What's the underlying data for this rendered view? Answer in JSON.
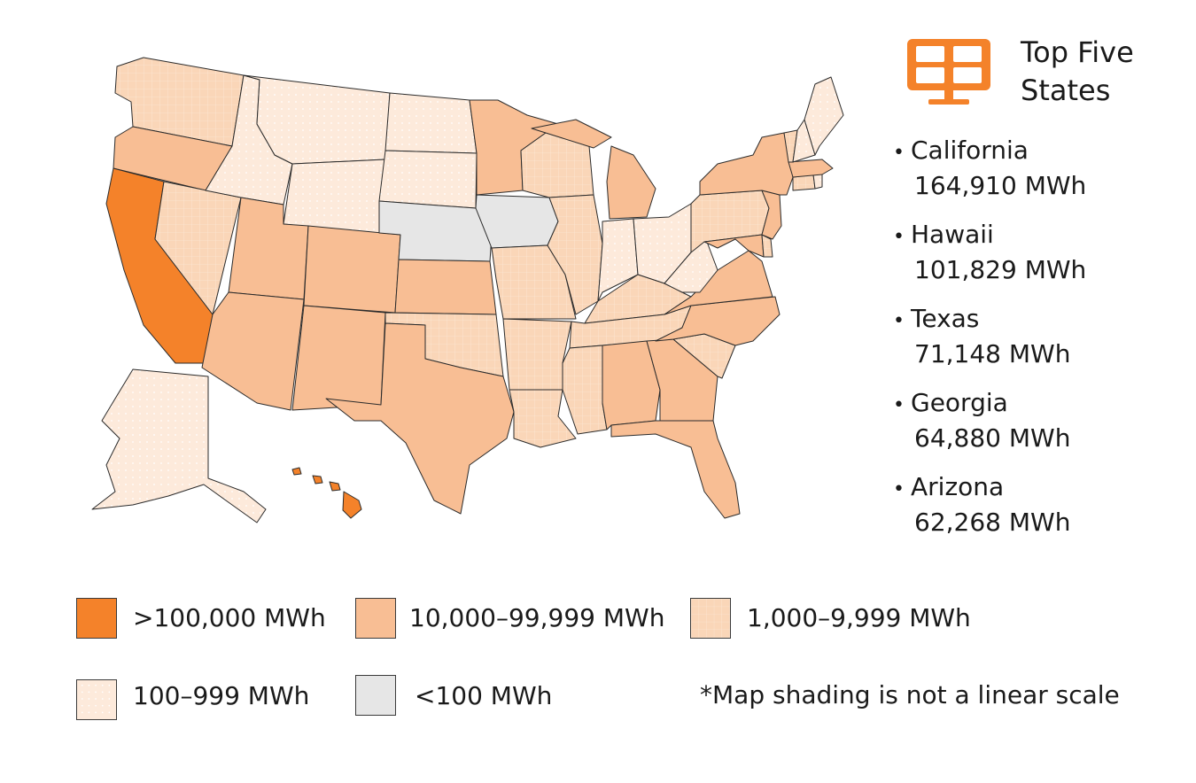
{
  "colors": {
    "gt100k": "#f4822a",
    "10k_100k": "#f8be94",
    "1k_10k": "#fad6b8",
    "100_999": "#fdeadb",
    "lt100": "#e6e6e6",
    "icon": "#f4822a",
    "stroke": "#2b2b2b"
  },
  "top_five": {
    "icon": "solar-panel-icon",
    "title_line1": "Top Five",
    "title_line2": "States",
    "items": [
      {
        "state": "California",
        "value": "164,910 MWh"
      },
      {
        "state": "Hawaii",
        "value": "101,829 MWh"
      },
      {
        "state": "Texas",
        "value": "71,148 MWh"
      },
      {
        "state": "Georgia",
        "value": "64,880 MWh"
      },
      {
        "state": "Arizona",
        "value": "62,268 MWh"
      }
    ]
  },
  "legend": {
    "items": [
      {
        "label": ">100,000 MWh",
        "class": "gt100k"
      },
      {
        "label": "10,000–99,999 MWh",
        "class": "10k_100k"
      },
      {
        "label": "1,000–9,999 MWh",
        "class": "1k_10k"
      },
      {
        "label": "100–999 MWh",
        "class": "100_999"
      },
      {
        "label": "<100 MWh",
        "class": "lt100"
      }
    ],
    "note": "*Map shading is not a linear scale"
  },
  "map": {
    "states": {
      "CA": "gt100k",
      "HI": "gt100k",
      "OR": "10k_100k",
      "UT": "10k_100k",
      "CO": "10k_100k",
      "AZ": "10k_100k",
      "NM": "10k_100k",
      "TX": "10k_100k",
      "KS": "10k_100k",
      "NC": "10k_100k",
      "VA": "10k_100k",
      "GA": "10k_100k",
      "FL": "10k_100k",
      "AL": "10k_100k",
      "NJ": "10k_100k",
      "MD": "10k_100k",
      "MA": "10k_100k",
      "MI": "10k_100k",
      "MN": "10k_100k",
      "NY": "10k_100k",
      "WA": "1k_10k",
      "NV": "1k_10k",
      "MO": "1k_10k",
      "OK": "1k_10k",
      "AR": "1k_10k",
      "LA": "1k_10k",
      "MS": "1k_10k",
      "TN": "1k_10k",
      "KY": "1k_10k",
      "IL": "1k_10k",
      "WI": "1k_10k",
      "PA": "1k_10k",
      "SC": "1k_10k",
      "VT": "1k_10k",
      "CT": "1k_10k",
      "DE": "1k_10k",
      "ID": "100_999",
      "MT": "100_999",
      "WY": "100_999",
      "ND": "100_999",
      "SD": "100_999",
      "IN": "100_999",
      "OH": "100_999",
      "WV": "100_999",
      "ME": "100_999",
      "NH": "100_999",
      "RI": "100_999",
      "AK": "100_999",
      "NE": "lt100",
      "IA": "lt100"
    }
  }
}
